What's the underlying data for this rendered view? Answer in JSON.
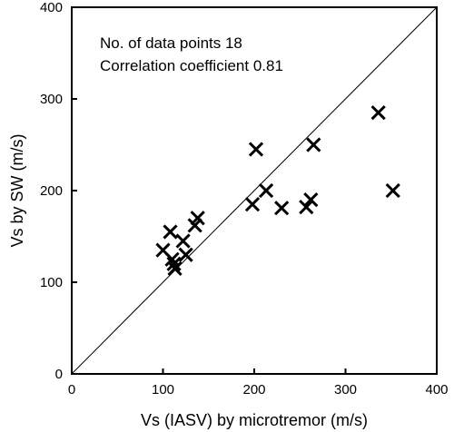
{
  "chart_data": {
    "type": "scatter",
    "xlabel": "Vs (IASV) by microtremor (m/s)",
    "ylabel": "Vs by SW (m/s)",
    "xlim": [
      0,
      400
    ],
    "ylim": [
      0,
      400
    ],
    "xticks": [
      "0",
      "100",
      "200",
      "300",
      "400"
    ],
    "yticks": [
      "0",
      "100",
      "200",
      "300",
      "400"
    ],
    "grid": false,
    "reference_line": "y = x",
    "marker": "x",
    "annotations": [
      "No. of data points 18",
      "Correlation coefficient 0.81"
    ],
    "series": [
      {
        "points": [
          {
            "x": 100,
            "y": 135
          },
          {
            "x": 108,
            "y": 155
          },
          {
            "x": 110,
            "y": 125
          },
          {
            "x": 112,
            "y": 120
          },
          {
            "x": 113,
            "y": 115
          },
          {
            "x": 122,
            "y": 145
          },
          {
            "x": 125,
            "y": 130
          },
          {
            "x": 135,
            "y": 162
          },
          {
            "x": 138,
            "y": 170
          },
          {
            "x": 198,
            "y": 185
          },
          {
            "x": 202,
            "y": 245
          },
          {
            "x": 213,
            "y": 200
          },
          {
            "x": 230,
            "y": 181
          },
          {
            "x": 257,
            "y": 182
          },
          {
            "x": 262,
            "y": 190
          },
          {
            "x": 265,
            "y": 250
          },
          {
            "x": 336,
            "y": 285
          },
          {
            "x": 352,
            "y": 200
          }
        ]
      }
    ]
  }
}
